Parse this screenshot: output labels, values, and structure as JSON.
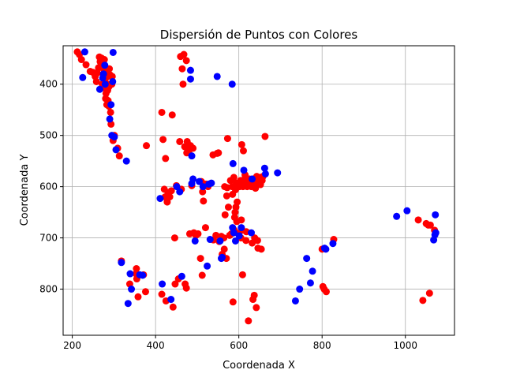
{
  "chart_data": {
    "type": "scatter",
    "title": "Dispersión de Puntos con Colores",
    "xlabel": "Coordenada X",
    "ylabel": "Coordenada Y",
    "xlim": [
      178,
      1118
    ],
    "ylim": [
      890,
      325
    ],
    "y_axis_inverted": true,
    "grid": true,
    "xticks": [
      200,
      400,
      600,
      800,
      1000
    ],
    "yticks": [
      400,
      500,
      600,
      700,
      800
    ],
    "colors": {
      "red": "#ff0000",
      "blue": "#0000ff"
    },
    "series": [
      {
        "color": "red",
        "points": [
          [
            212,
            337
          ],
          [
            217,
            342
          ],
          [
            222,
            352
          ],
          [
            233,
            362
          ],
          [
            243,
            375
          ],
          [
            250,
            377
          ],
          [
            255,
            385
          ],
          [
            258,
            395
          ],
          [
            260,
            378
          ],
          [
            263,
            368
          ],
          [
            265,
            347
          ],
          [
            267,
            356
          ],
          [
            270,
            349
          ],
          [
            272,
            360
          ],
          [
            272,
            400
          ],
          [
            275,
            370
          ],
          [
            275,
            382
          ],
          [
            277,
            352
          ],
          [
            277,
            395
          ],
          [
            279,
            408
          ],
          [
            279,
            390
          ],
          [
            280,
            428
          ],
          [
            281,
            418
          ],
          [
            282,
            375
          ],
          [
            283,
            440
          ],
          [
            284,
            400
          ],
          [
            285,
            385
          ],
          [
            285,
            412
          ],
          [
            286,
            432
          ],
          [
            288,
            443
          ],
          [
            288,
            405
          ],
          [
            289,
            370
          ],
          [
            291,
            382
          ],
          [
            292,
            455
          ],
          [
            293,
            478
          ],
          [
            295,
            400
          ],
          [
            296,
            385
          ],
          [
            298,
            510
          ],
          [
            301,
            500
          ],
          [
            309,
            525
          ],
          [
            313,
            540
          ],
          [
            318,
            745
          ],
          [
            338,
            790
          ],
          [
            353,
            770
          ],
          [
            354,
            760
          ],
          [
            355,
            780
          ],
          [
            358,
            815
          ],
          [
            371,
            772
          ],
          [
            376,
            805
          ],
          [
            378,
            520
          ],
          [
            415,
            455
          ],
          [
            415,
            810
          ],
          [
            418,
            508
          ],
          [
            421,
            605
          ],
          [
            423,
            620
          ],
          [
            424,
            545
          ],
          [
            425,
            823
          ],
          [
            428,
            630
          ],
          [
            430,
            612
          ],
          [
            434,
            620
          ],
          [
            438,
            608
          ],
          [
            440,
            460
          ],
          [
            442,
            835
          ],
          [
            446,
            700
          ],
          [
            447,
            790
          ],
          [
            450,
            598
          ],
          [
            455,
            780
          ],
          [
            458,
            512
          ],
          [
            460,
            346
          ],
          [
            462,
            605
          ],
          [
            464,
            370
          ],
          [
            466,
            400
          ],
          [
            468,
            342
          ],
          [
            470,
            522
          ],
          [
            471,
            790
          ],
          [
            474,
            798
          ],
          [
            474,
            354
          ],
          [
            475,
            534
          ],
          [
            476,
            512
          ],
          [
            480,
            530
          ],
          [
            482,
            692
          ],
          [
            484,
            520
          ],
          [
            487,
            598
          ],
          [
            490,
            525
          ],
          [
            492,
            690
          ],
          [
            497,
            695
          ],
          [
            502,
            692
          ],
          [
            508,
            740
          ],
          [
            510,
            590
          ],
          [
            512,
            773
          ],
          [
            513,
            610
          ],
          [
            515,
            628
          ],
          [
            520,
            680
          ],
          [
            521,
            595
          ],
          [
            526,
            600
          ],
          [
            538,
            538
          ],
          [
            539,
            704
          ],
          [
            545,
            695
          ],
          [
            548,
            535
          ],
          [
            551,
            534
          ],
          [
            553,
            707
          ],
          [
            558,
            697
          ],
          [
            560,
            732
          ],
          [
            564,
            700
          ],
          [
            565,
            722
          ],
          [
            566,
            600
          ],
          [
            567,
            655
          ],
          [
            570,
            740
          ],
          [
            571,
            618
          ],
          [
            572,
            602
          ],
          [
            573,
            506
          ],
          [
            575,
            640
          ],
          [
            578,
            695
          ],
          [
            580,
            588
          ],
          [
            582,
            692
          ],
          [
            584,
            600
          ],
          [
            585,
            615
          ],
          [
            586,
            825
          ],
          [
            588,
            582
          ],
          [
            589,
            685
          ],
          [
            590,
            660
          ],
          [
            591,
            650
          ],
          [
            592,
            606
          ],
          [
            593,
            640
          ],
          [
            594,
            593
          ],
          [
            595,
            668
          ],
          [
            596,
            630
          ],
          [
            598,
            691
          ],
          [
            600,
            595
          ],
          [
            602,
            600
          ],
          [
            604,
            588
          ],
          [
            605,
            700
          ],
          [
            606,
            665
          ],
          [
            607,
            518
          ],
          [
            608,
            685
          ],
          [
            609,
            772
          ],
          [
            610,
            600
          ],
          [
            611,
            530
          ],
          [
            612,
            590
          ],
          [
            614,
            585
          ],
          [
            615,
            577
          ],
          [
            616,
            598
          ],
          [
            617,
            705
          ],
          [
            618,
            688
          ],
          [
            620,
            600
          ],
          [
            622,
            594
          ],
          [
            623,
            862
          ],
          [
            625,
            585
          ],
          [
            628,
            588
          ],
          [
            630,
            600
          ],
          [
            632,
            710
          ],
          [
            634,
            820
          ],
          [
            636,
            595
          ],
          [
            637,
            812
          ],
          [
            638,
            700
          ],
          [
            640,
            603
          ],
          [
            641,
            588
          ],
          [
            642,
            836
          ],
          [
            643,
            580
          ],
          [
            645,
            705
          ],
          [
            646,
            720
          ],
          [
            648,
            592
          ],
          [
            650,
            582
          ],
          [
            652,
            596
          ],
          [
            654,
            722
          ],
          [
            656,
            588
          ],
          [
            658,
            580
          ],
          [
            663,
            502
          ],
          [
            800,
            722
          ],
          [
            802,
            795
          ],
          [
            805,
            800
          ],
          [
            810,
            805
          ],
          [
            828,
            703
          ],
          [
            1031,
            665
          ],
          [
            1042,
            822
          ],
          [
            1050,
            672
          ],
          [
            1055,
            675
          ],
          [
            1058,
            808
          ],
          [
            1060,
            675
          ],
          [
            1070,
            685
          ]
        ]
      },
      {
        "color": "blue",
        "points": [
          [
            225,
            387
          ],
          [
            230,
            337
          ],
          [
            266,
            410
          ],
          [
            273,
            388
          ],
          [
            275,
            380
          ],
          [
            278,
            363
          ],
          [
            279,
            400
          ],
          [
            290,
            468
          ],
          [
            293,
            440
          ],
          [
            295,
            500
          ],
          [
            297,
            395
          ],
          [
            298,
            338
          ],
          [
            301,
            503
          ],
          [
            305,
            528
          ],
          [
            330,
            550
          ],
          [
            318,
            748
          ],
          [
            334,
            828
          ],
          [
            339,
            770
          ],
          [
            342,
            800
          ],
          [
            362,
            772
          ],
          [
            369,
            773
          ],
          [
            411,
            623
          ],
          [
            416,
            790
          ],
          [
            437,
            820
          ],
          [
            451,
            600
          ],
          [
            458,
            610
          ],
          [
            463,
            775
          ],
          [
            484,
            390
          ],
          [
            484,
            373
          ],
          [
            487,
            540
          ],
          [
            487,
            594
          ],
          [
            490,
            585
          ],
          [
            495,
            706
          ],
          [
            505,
            590
          ],
          [
            514,
            600
          ],
          [
            524,
            755
          ],
          [
            528,
            595
          ],
          [
            531,
            703
          ],
          [
            534,
            593
          ],
          [
            548,
            385
          ],
          [
            555,
            706
          ],
          [
            558,
            740
          ],
          [
            560,
            738
          ],
          [
            584,
            400
          ],
          [
            585,
            680
          ],
          [
            586,
            555
          ],
          [
            588,
            690
          ],
          [
            592,
            706
          ],
          [
            601,
            696
          ],
          [
            606,
            680
          ],
          [
            612,
            568
          ],
          [
            630,
            690
          ],
          [
            632,
            585
          ],
          [
            662,
            564
          ],
          [
            664,
            575
          ],
          [
            693,
            573
          ],
          [
            736,
            823
          ],
          [
            746,
            800
          ],
          [
            763,
            740
          ],
          [
            772,
            788
          ],
          [
            777,
            765
          ],
          [
            806,
            720
          ],
          [
            809,
            722
          ],
          [
            826,
            711
          ],
          [
            979,
            658
          ],
          [
            1004,
            647
          ],
          [
            1068,
            704
          ],
          [
            1071,
            694
          ],
          [
            1072,
            655
          ],
          [
            1073,
            690
          ]
        ]
      }
    ]
  }
}
